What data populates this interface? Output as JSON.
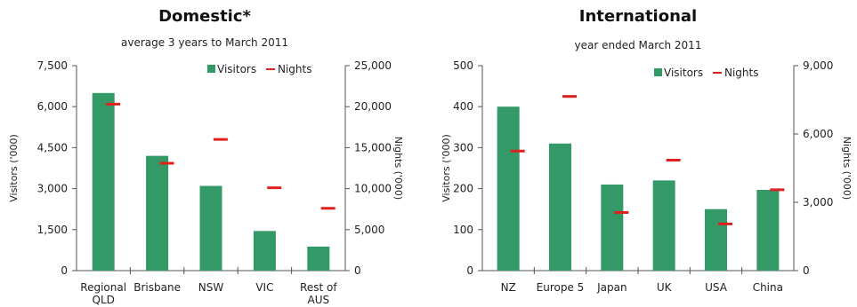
{
  "colors": {
    "bar": "#339966",
    "nights": "#e0201e",
    "axis": "#555555"
  },
  "chart_data": [
    {
      "type": "bar",
      "title": "Domestic*",
      "subtitle": "average 3 years to March 2011",
      "categories": [
        [
          "Regional",
          "QLD"
        ],
        [
          "Brisbane"
        ],
        [
          "NSW"
        ],
        [
          "VIC"
        ],
        [
          "Rest of",
          "AUS"
        ]
      ],
      "ylabel": "Visitors ('000)",
      "y2label": "Nights ('000)",
      "ylim": [
        0,
        7500
      ],
      "y2lim": [
        0,
        25000
      ],
      "yticks": [
        "0",
        "1,500",
        "3,000",
        "4,500",
        "6,000",
        "7,500"
      ],
      "y2ticks": [
        "0",
        "5,000",
        "10,000",
        "15,000",
        "20,000",
        "25,000"
      ],
      "legend": {
        "position": "top-right",
        "bars": "Visitors",
        "marks": "Nights"
      },
      "series": [
        {
          "name": "Visitors",
          "axis": "left",
          "values": [
            6500,
            4200,
            3100,
            1450,
            880
          ]
        },
        {
          "name": "Nights",
          "axis": "right",
          "values": [
            20300,
            13100,
            16000,
            10100,
            7600
          ]
        }
      ]
    },
    {
      "type": "bar",
      "title": "International",
      "subtitle": "year ended March 2011",
      "categories": [
        [
          "NZ"
        ],
        [
          "Europe 5"
        ],
        [
          "Japan"
        ],
        [
          "UK"
        ],
        [
          "USA"
        ],
        [
          "China"
        ]
      ],
      "ylabel": "Visitors ('000)",
      "y2label": "Nights ('000)",
      "ylim": [
        0,
        500
      ],
      "y2lim": [
        0,
        9000
      ],
      "yticks": [
        "0",
        "100",
        "200",
        "300",
        "400",
        "500"
      ],
      "y2ticks": [
        "0",
        "3,000",
        "6,000",
        "9,000"
      ],
      "legend": {
        "position": "top-right",
        "bars": "Visitors",
        "marks": "Nights"
      },
      "series": [
        {
          "name": "Visitors",
          "axis": "left",
          "values": [
            400,
            310,
            210,
            220,
            150,
            197
          ]
        },
        {
          "name": "Nights",
          "axis": "right",
          "values": [
            5250,
            7650,
            2550,
            4850,
            2050,
            3550
          ]
        }
      ]
    }
  ]
}
